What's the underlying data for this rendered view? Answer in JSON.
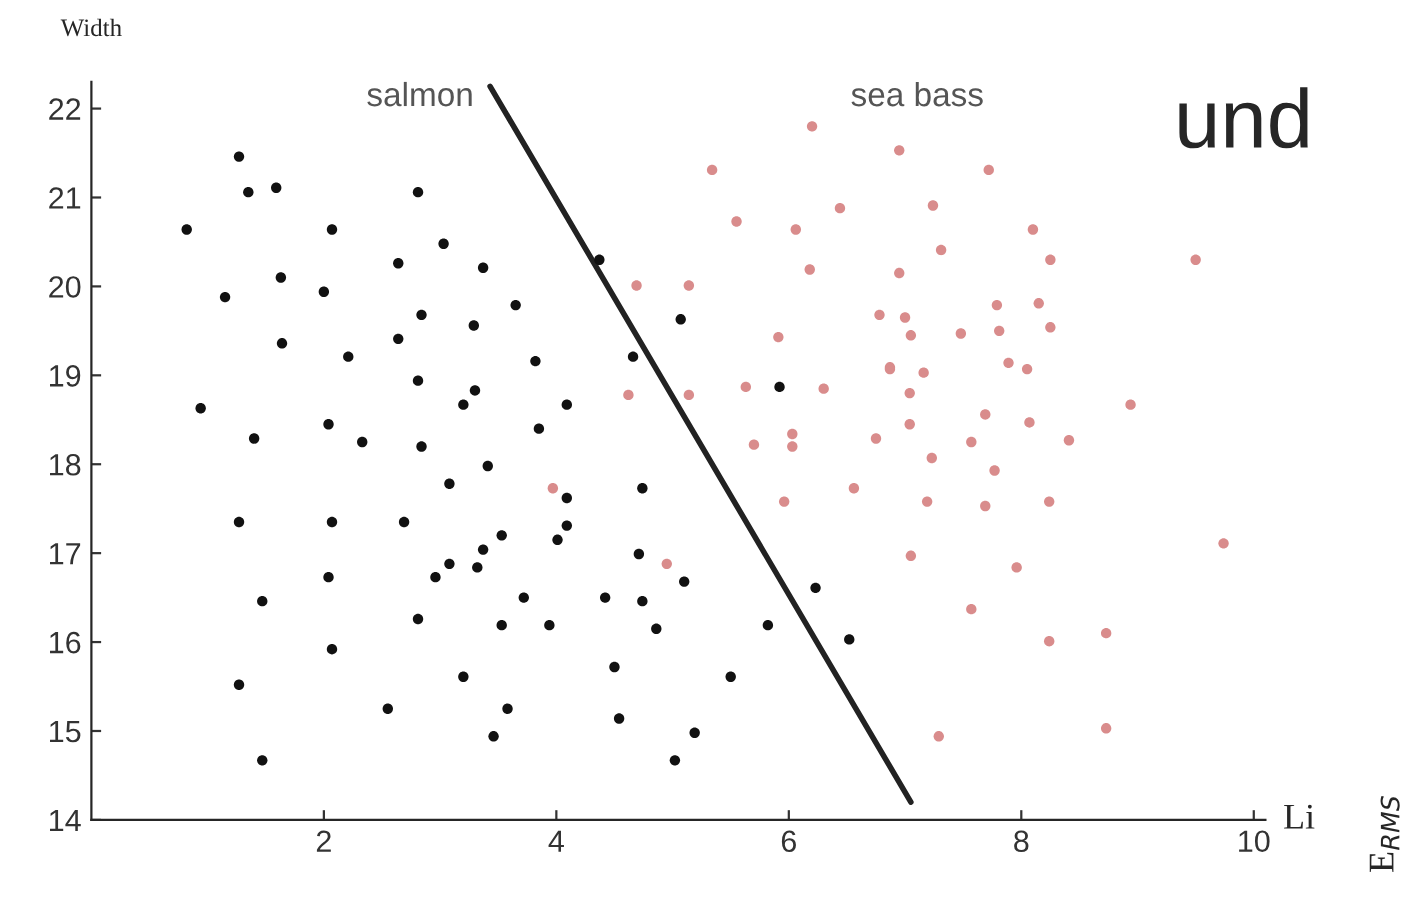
{
  "chart_data": {
    "type": "scatter",
    "xlabel": "Li",
    "ylabel": "Width",
    "xlim": [
      0,
      10.1
    ],
    "ylim": [
      14,
      22.3
    ],
    "xticks": [
      2,
      4,
      6,
      8,
      10
    ],
    "yticks": [
      14,
      15,
      16,
      17,
      18,
      19,
      20,
      21,
      22
    ],
    "grid": false,
    "legend": false,
    "series": [
      {
        "name": "salmon",
        "marker": "circle",
        "color": "#111111",
        "x": [
          1.27,
          1.35,
          1.59,
          2.81,
          0.82,
          2.07,
          3.03,
          2.64,
          3.37,
          3.65,
          1.63,
          1.15,
          2.0,
          2.84,
          3.29,
          2.64,
          1.64,
          2.21,
          2.81,
          3.3,
          3.2,
          0.94,
          1.4,
          2.04,
          2.33,
          2.84,
          3.41,
          3.08,
          1.27,
          2.07,
          2.69,
          3.53,
          3.37,
          3.08,
          2.96,
          3.32,
          2.04,
          1.47,
          2.81,
          3.53,
          2.07,
          3.2,
          1.27,
          2.55,
          3.58,
          3.46,
          1.47,
          4.37,
          5.07,
          3.82,
          4.66,
          4.09,
          3.85,
          5.92,
          4.74,
          4.09,
          4.09,
          4.01,
          4.71,
          5.1,
          3.72,
          4.42,
          4.74,
          3.94,
          4.86,
          5.82,
          6.23,
          6.52,
          4.5,
          5.5,
          4.54,
          5.19,
          5.02
        ],
        "values": [
          21.46,
          21.06,
          21.11,
          21.06,
          20.64,
          20.64,
          20.48,
          20.26,
          20.21,
          19.79,
          20.1,
          19.88,
          19.94,
          19.68,
          19.56,
          19.41,
          19.36,
          19.21,
          18.94,
          18.83,
          18.67,
          18.63,
          18.29,
          18.45,
          18.25,
          18.2,
          17.98,
          17.78,
          17.35,
          17.35,
          17.35,
          17.2,
          17.04,
          16.88,
          16.73,
          16.84,
          16.73,
          16.46,
          16.26,
          16.19,
          15.92,
          15.61,
          15.52,
          15.25,
          15.25,
          14.94,
          14.67,
          20.3,
          19.63,
          19.16,
          19.21,
          18.67,
          18.4,
          18.87,
          17.73,
          17.62,
          17.31,
          17.15,
          16.99,
          16.68,
          16.5,
          16.5,
          16.46,
          16.19,
          16.15,
          16.19,
          16.61,
          16.03,
          15.72,
          15.61,
          15.14,
          14.98,
          14.67
        ]
      },
      {
        "name": "sea bass",
        "marker": "circle",
        "color": "#d98c8c",
        "x": [
          6.2,
          5.34,
          5.55,
          6.44,
          6.06,
          6.18,
          4.69,
          5.14,
          6.78,
          5.91,
          6.87,
          4.62,
          5.14,
          5.63,
          6.3,
          6.03,
          6.75,
          6.03,
          6.95,
          7.72,
          7.24,
          8.1,
          7.31,
          6.95,
          8.25,
          7.79,
          7.05,
          7.81,
          7.0,
          7.48,
          8.15,
          8.25,
          7.89,
          8.05,
          6.87,
          7.16,
          7.04,
          7.69,
          7.04,
          8.07,
          7.57,
          8.41,
          7.23,
          9.5,
          8.94,
          7.77,
          7.19,
          7.69,
          8.24,
          7.05,
          7.96,
          9.74,
          7.57,
          8.24,
          8.73,
          7.29,
          8.73,
          3.97,
          5.7,
          5.96,
          6.56,
          4.95
        ],
        "values": [
          21.8,
          21.31,
          20.73,
          20.88,
          20.64,
          20.19,
          20.01,
          20.01,
          19.68,
          19.43,
          19.09,
          18.78,
          18.78,
          18.87,
          18.85,
          18.34,
          18.29,
          18.2,
          21.53,
          21.31,
          20.91,
          20.64,
          20.41,
          20.15,
          20.3,
          19.79,
          19.45,
          19.5,
          19.65,
          19.47,
          19.81,
          19.54,
          19.14,
          19.07,
          19.07,
          19.03,
          18.8,
          18.56,
          18.45,
          18.47,
          18.25,
          18.27,
          18.07,
          20.3,
          18.67,
          17.93,
          17.58,
          17.53,
          17.58,
          16.97,
          16.84,
          17.11,
          16.37,
          16.01,
          16.1,
          14.94,
          15.03,
          17.73,
          18.22,
          17.58,
          17.73,
          16.88
        ]
      },
      {
        "type": "line",
        "color": "#222222",
        "x": [
          3.43,
          7.05
        ],
        "values": [
          22.25,
          14.2
        ]
      }
    ],
    "annotations": [
      "und",
      "E$_{RMS}$"
    ]
  }
}
